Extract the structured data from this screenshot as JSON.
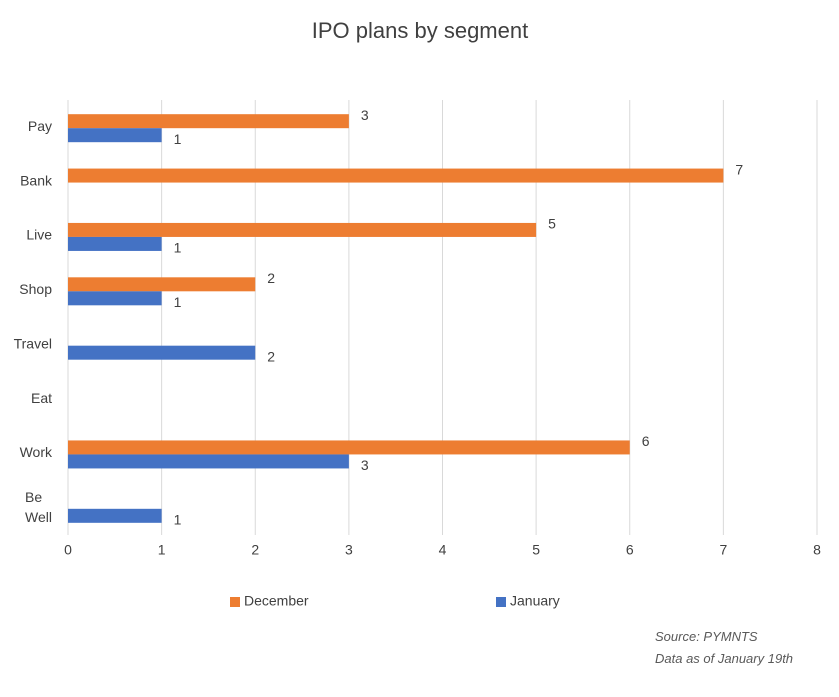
{
  "chart_data": {
    "type": "barh",
    "title": "IPO plans by segment",
    "categories": [
      "Pay",
      "Bank",
      "Live",
      "Shop",
      "Travel",
      "Eat",
      "Work",
      "Be Well"
    ],
    "series": [
      {
        "name": "December",
        "color": "#ed7d31",
        "values": [
          3,
          7,
          5,
          2,
          null,
          null,
          6,
          null
        ]
      },
      {
        "name": "January",
        "color": "#4472c4",
        "values": [
          1,
          null,
          1,
          1,
          2,
          null,
          3,
          1
        ]
      }
    ],
    "xlim": [
      0,
      8
    ],
    "xticks": [
      0,
      1,
      2,
      3,
      4,
      5,
      6,
      7,
      8
    ],
    "grid": true,
    "legend": "bottom",
    "source": "Source: PYMNTS",
    "note": "Data as of January 19th"
  }
}
